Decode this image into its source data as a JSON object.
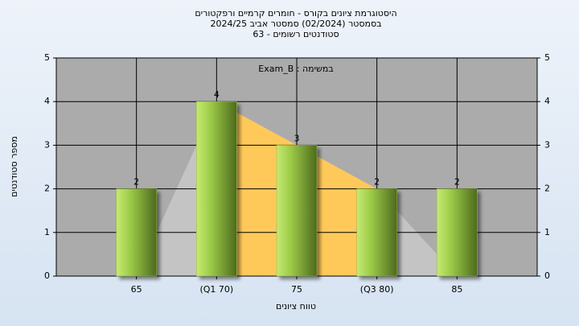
{
  "chart_data": {
    "type": "bar",
    "title": [
      "היסטוגרמת ציונים בקורס - חומרים קרמיים ורפקטורים",
      "בסמסטר  (02/2024)  סמסטר אביב 2024/25",
      "סטודנטים רשומים - 63"
    ],
    "annotation": "במשימה : Exam_B",
    "x_label": "טווח ציונים",
    "y_label": "מספר סטודנטים",
    "categories": [
      "65",
      "(Q1 70)",
      "75",
      "(Q3 80)",
      "85"
    ],
    "values": [
      2,
      4,
      3,
      2,
      2
    ],
    "color": "#8fb840",
    "area_series": [
      {
        "color": "#c4c4c4",
        "values": [
          0,
          4,
          3,
          2,
          0
        ]
      },
      {
        "color": "#ffc95a",
        "values": [
          null,
          4,
          3,
          2,
          null
        ]
      }
    ],
    "ylim": [
      0,
      5
    ],
    "yticks": [
      0,
      1,
      2,
      3,
      4,
      5
    ],
    "y2lim": [
      0,
      5
    ],
    "y2ticks": [
      0,
      1,
      2,
      3,
      4,
      5
    ],
    "grid": true
  }
}
